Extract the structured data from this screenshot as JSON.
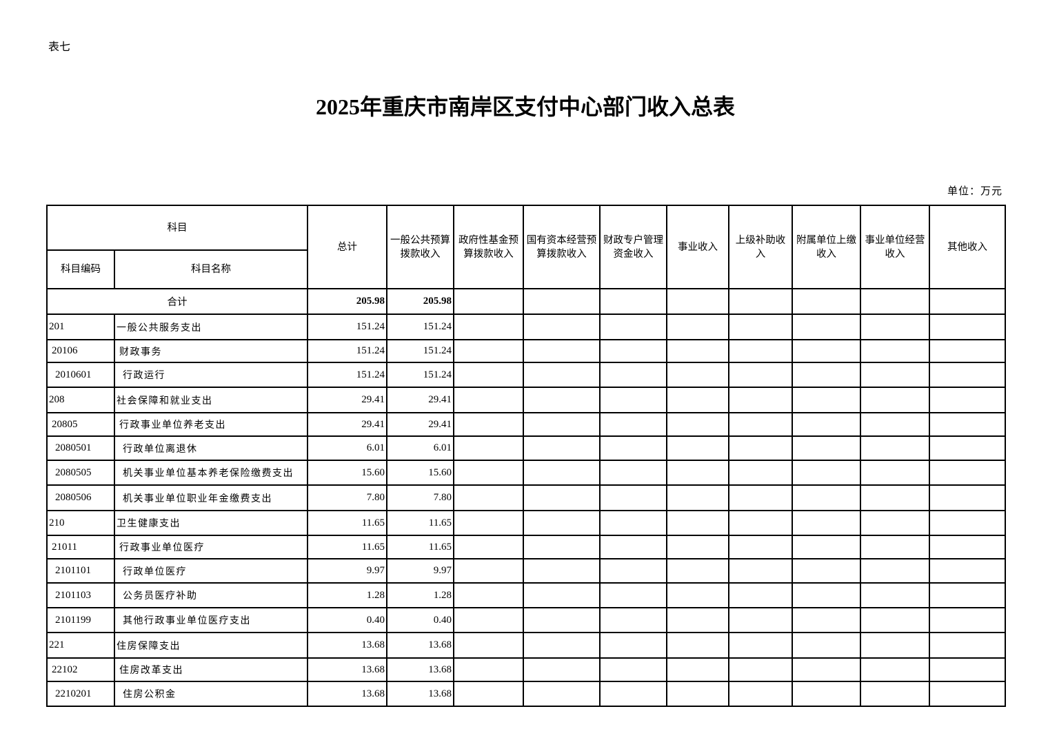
{
  "doc_label": "表七",
  "title": "2025年重庆市南岸区支付中心部门收入总表",
  "unit": "单位：万元",
  "headers": {
    "subject": "科目",
    "code": "科目编码",
    "name": "科目名称",
    "total": "总计",
    "general_budget": "一般公共预算拨款收入",
    "gov_fund": "政府性基金预算拨款收入",
    "state_capital": "国有资本经营预算拨款收入",
    "fiscal_account": "财政专户管理资金收入",
    "business_income": "事业收入",
    "superior_subsidy": "上级补助收入",
    "affiliated_unit": "附属单位上缴收入",
    "business_operation": "事业单位经营收入",
    "other_income": "其他收入"
  },
  "total_row": {
    "label": "合计",
    "total": "205.98",
    "general_budget": "205.98"
  },
  "rows": [
    {
      "level": 1,
      "code": "201",
      "name": "一般公共服务支出",
      "total": "151.24",
      "general_budget": "151.24"
    },
    {
      "level": 2,
      "code": "20106",
      "name": "财政事务",
      "total": "151.24",
      "general_budget": "151.24"
    },
    {
      "level": 3,
      "code": "2010601",
      "name": "行政运行",
      "total": "151.24",
      "general_budget": "151.24"
    },
    {
      "level": 1,
      "code": "208",
      "name": "社会保障和就业支出",
      "total": "29.41",
      "general_budget": "29.41"
    },
    {
      "level": 2,
      "code": "20805",
      "name": "行政事业单位养老支出",
      "total": "29.41",
      "general_budget": "29.41"
    },
    {
      "level": 3,
      "code": "2080501",
      "name": "行政单位离退休",
      "total": "6.01",
      "general_budget": "6.01"
    },
    {
      "level": 3,
      "code": "2080505",
      "name": "机关事业单位基本养老保险缴费支出",
      "total": "15.60",
      "general_budget": "15.60"
    },
    {
      "level": 3,
      "code": "2080506",
      "name": "机关事业单位职业年金缴费支出",
      "total": "7.80",
      "general_budget": "7.80"
    },
    {
      "level": 1,
      "code": "210",
      "name": "卫生健康支出",
      "total": "11.65",
      "general_budget": "11.65"
    },
    {
      "level": 2,
      "code": "21011",
      "name": "行政事业单位医疗",
      "total": "11.65",
      "general_budget": "11.65"
    },
    {
      "level": 3,
      "code": "2101101",
      "name": "行政单位医疗",
      "total": "9.97",
      "general_budget": "9.97"
    },
    {
      "level": 3,
      "code": "2101103",
      "name": "公务员医疗补助",
      "total": "1.28",
      "general_budget": "1.28"
    },
    {
      "level": 3,
      "code": "2101199",
      "name": "其他行政事业单位医疗支出",
      "total": "0.40",
      "general_budget": "0.40"
    },
    {
      "level": 1,
      "code": "221",
      "name": "住房保障支出",
      "total": "13.68",
      "general_budget": "13.68"
    },
    {
      "level": 2,
      "code": "22102",
      "name": "住房改革支出",
      "total": "13.68",
      "general_budget": "13.68"
    },
    {
      "level": 3,
      "code": "2210201",
      "name": "住房公积金",
      "total": "13.68",
      "general_budget": "13.68"
    }
  ]
}
